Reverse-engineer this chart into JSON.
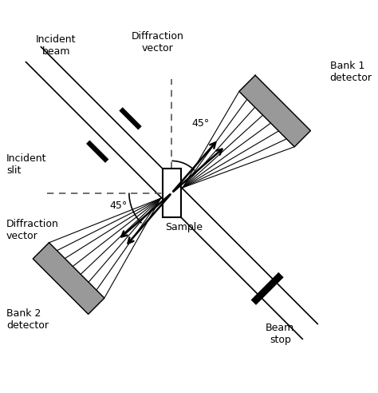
{
  "background_color": "#ffffff",
  "fig_width": 4.74,
  "fig_height": 4.92,
  "dpi": 100,
  "labels": {
    "incident_beam": "Incident\nbeam",
    "diffraction_vector_top": "Diffraction\nvector",
    "bank1_detector": "Bank 1\ndetector",
    "incident_slit": "Incident\nslit",
    "diffraction_vector_left": "Diffraction\nvector",
    "bank2_detector": "Bank 2\ndetector",
    "sample": "Sample",
    "beam_stop": "Beam\nstop",
    "angle_top": "45°",
    "angle_left": "45°"
  },
  "colors": {
    "beam_edge": "#000000",
    "slit": "#000000",
    "beam_stop": "#000000",
    "sample_box_face": "#ffffff",
    "sample_box_edge": "#000000",
    "detector_gray": "#999999",
    "diff_lines": "#000000",
    "arrow": "#000000",
    "dashed": "#555555",
    "text": "#000000"
  },
  "fontsize": 9
}
